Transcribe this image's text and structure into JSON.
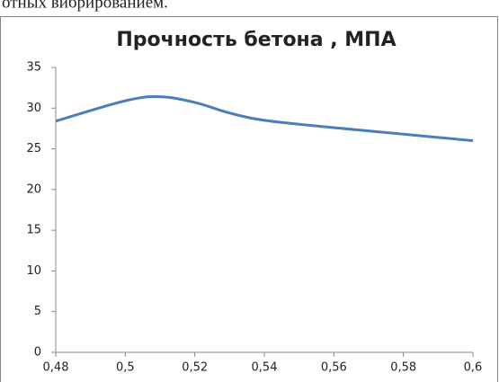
{
  "text_above": "отных вибрированием.",
  "chart_data": {
    "type": "line",
    "title": "Прочность бетона , МПА",
    "x": [
      0.48,
      0.5,
      0.51,
      0.52,
      0.53,
      0.54,
      0.56,
      0.58,
      0.6
    ],
    "series": [
      {
        "name": "Прочность бетона",
        "color": "#4a7ebb",
        "values": [
          28.4,
          30.9,
          31.4,
          30.7,
          29.4,
          28.5,
          27.6,
          26.8,
          26.0
        ]
      }
    ],
    "xlim": [
      0.48,
      0.6
    ],
    "xticks": [
      {
        "value": 0.48,
        "label": "0,48"
      },
      {
        "value": 0.5,
        "label": "0,5"
      },
      {
        "value": 0.52,
        "label": "0,52"
      },
      {
        "value": 0.54,
        "label": "0,54"
      },
      {
        "value": 0.56,
        "label": "0,56"
      },
      {
        "value": 0.58,
        "label": "0,58"
      },
      {
        "value": 0.6,
        "label": "0,6"
      }
    ],
    "ylim": [
      0,
      35
    ],
    "yticks": [
      0,
      5,
      10,
      15,
      20,
      25,
      30,
      35
    ],
    "grid": false,
    "legend": false
  }
}
